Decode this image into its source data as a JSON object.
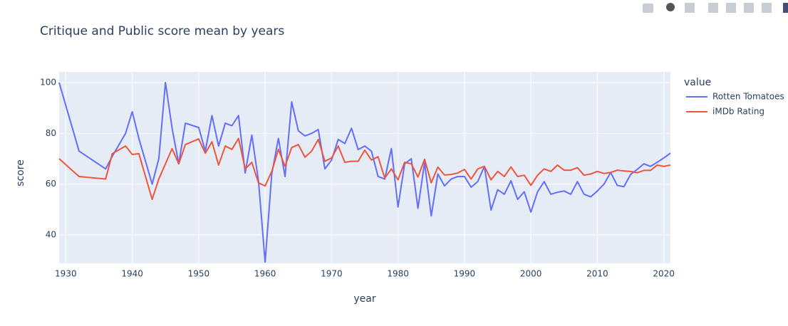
{
  "chart_data": {
    "type": "line",
    "title": "Critique and Public score mean by years",
    "x_label": "year",
    "y_label": "score",
    "legend_title": "value",
    "legend_position": "right",
    "grid": true,
    "x": [
      1929,
      1932,
      1936,
      1937,
      1939,
      1940,
      1941,
      1943,
      1944,
      1945,
      1946,
      1947,
      1948,
      1950,
      1951,
      1952,
      1953,
      1954,
      1955,
      1956,
      1957,
      1958,
      1959,
      1960,
      1961,
      1962,
      1963,
      1964,
      1965,
      1966,
      1967,
      1968,
      1969,
      1970,
      1971,
      1972,
      1973,
      1974,
      1975,
      1976,
      1977,
      1978,
      1979,
      1980,
      1981,
      1982,
      1983,
      1984,
      1985,
      1986,
      1987,
      1988,
      1989,
      1990,
      1991,
      1992,
      1993,
      1994,
      1995,
      1996,
      1997,
      1998,
      1999,
      2000,
      2001,
      2002,
      2003,
      2004,
      2005,
      2006,
      2007,
      2008,
      2009,
      2010,
      2011,
      2012,
      2013,
      2014,
      2015,
      2016,
      2017,
      2018,
      2019,
      2020,
      2021
    ],
    "series": [
      {
        "name": "Rotten Tomatoes",
        "color": "#636efa",
        "values": [
          100,
          73,
          66,
          71,
          80,
          88.5,
          78,
          60,
          70,
          100,
          82,
          68,
          84,
          82.3,
          73,
          87,
          75,
          84,
          83,
          87,
          64.4,
          79.3,
          61.3,
          29.3,
          64,
          78,
          63,
          92.4,
          81,
          79,
          80,
          81.5,
          66,
          69.5,
          77.6,
          76,
          82,
          73.6,
          75,
          73,
          63,
          62,
          74,
          51,
          68,
          70,
          50.5,
          68.5,
          47.5,
          64,
          59.3,
          62,
          63,
          63,
          58.8,
          61,
          67,
          49.8,
          57.8,
          56,
          61.3,
          54,
          57,
          49,
          57,
          61,
          56,
          56.8,
          57.3,
          56,
          61,
          56,
          55,
          57.3,
          60,
          64.6,
          59.5,
          59,
          63.8,
          65.8,
          68,
          67,
          68.6,
          70.3,
          72.2
        ]
      },
      {
        "name": "iMDb Rating",
        "color": "#ef553b",
        "values": [
          70,
          63,
          62,
          72,
          75,
          71.7,
          72,
          54,
          62,
          68,
          74,
          68,
          75.6,
          77.8,
          72.2,
          76.7,
          67.5,
          75,
          73.7,
          78,
          66,
          68.6,
          60.5,
          59.3,
          65,
          73.7,
          67,
          74.4,
          75.6,
          70.6,
          73,
          77.6,
          69,
          70.3,
          75,
          68.6,
          69,
          69,
          73.4,
          69.5,
          70.8,
          62.4,
          66,
          61.7,
          68.6,
          68,
          62.8,
          69.8,
          60.5,
          66.7,
          63.6,
          63.8,
          64.4,
          65.8,
          62,
          66,
          67,
          61.7,
          65,
          63,
          66.8,
          63,
          63.5,
          59.5,
          63.5,
          66,
          65,
          67.5,
          65.5,
          65.5,
          66.5,
          63.5,
          64,
          65,
          64.2,
          64.6,
          65.5,
          65.2,
          65,
          64.5,
          65.4,
          65.4,
          67.5,
          67,
          67.5
        ]
      }
    ],
    "xlim": [
      1929,
      2021
    ],
    "xticks": [
      1930,
      1940,
      1950,
      1960,
      1970,
      1980,
      1990,
      2000,
      2010,
      2020
    ],
    "ylim": [
      28.8,
      104.2
    ],
    "yticks": [
      40,
      60,
      80,
      100
    ]
  }
}
